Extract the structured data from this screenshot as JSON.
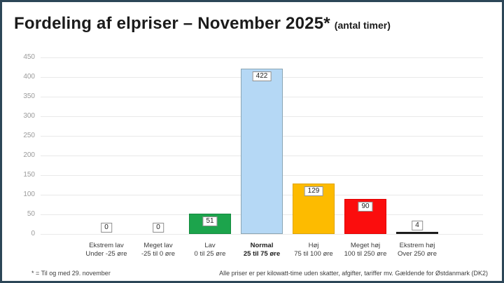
{
  "window": {
    "frame_border_color": "#2c4657",
    "background_color": "#ffffff"
  },
  "header": {
    "title": "Fordeling af elpriser – November 2025*",
    "subtitle": "(antal timer)"
  },
  "chart_data": {
    "type": "bar",
    "title": "Fordeling af elpriser – November 2025* (antal timer)",
    "xlabel": "",
    "ylabel": "",
    "ylim": [
      0,
      450
    ],
    "ytick_step": 50,
    "ytick_labels": [
      "0",
      "50",
      "100",
      "150",
      "200",
      "250",
      "300",
      "350",
      "400",
      "450"
    ],
    "grid": true,
    "legend": "none",
    "categories": [
      "Ekstrem lav",
      "Meget lav",
      "Lav",
      "Normal",
      "Høj",
      "Meget høj",
      "Ekstrem høj"
    ],
    "category_sublabels": [
      "Under -25 øre",
      "-25 til 0 øre",
      "0 til 25 øre",
      "25 til 75 øre",
      "75 til 100 øre",
      "100 til 250 øre",
      "Over 250 øre"
    ],
    "values": [
      0,
      0,
      51,
      422,
      129,
      90,
      4
    ],
    "data_labels": [
      "0",
      "0",
      "51",
      "422",
      "129",
      "90",
      "4"
    ],
    "bar_fill_colors": [
      "none",
      "none",
      "#1ca44c",
      "#b5d8f5",
      "#fdbb00",
      "#fb0d0d",
      "#1c1c1c"
    ],
    "bar_border_colors": [
      "none",
      "none",
      "#128a3e",
      "#8ba6b5",
      "#dfa400",
      "#e00000",
      "#1c1c1c"
    ],
    "bold_category_index": 3,
    "data_label_boxes": true
  },
  "colors": {
    "grid": "#e9e9e9",
    "tick_label": "#9a9a9a",
    "category_label": "#3a3a3a",
    "value_box_border": "#8f8f8f",
    "value_box_background": "#ffffff",
    "value_box_text": "#222222"
  },
  "footnotes": {
    "left": "* = Til og med 29. november",
    "right": "Alle priser er per kilowatt-time uden skatter, afgifter, tariffer mv. Gældende for Østdanmark (DK2)"
  }
}
